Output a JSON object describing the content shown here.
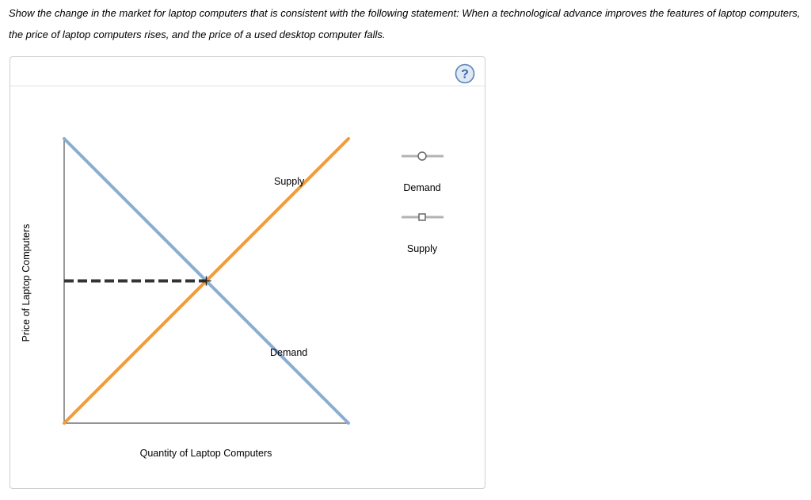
{
  "question": {
    "text": "Show the change in the market for laptop computers that is consistent with the following statement: When a technological advance improves the features of laptop computers, the price of laptop computers rises, and the price of a used desktop computer falls."
  },
  "help": {
    "glyph": "?",
    "icon": "help-circle-icon"
  },
  "graph": {
    "x_axis_label": "Quantity of Laptop Computers",
    "y_axis_label": "Price of Laptop Computers",
    "demand_curve_label": "Demand",
    "supply_curve_label": "Supply",
    "colors": {
      "demand": "#8aaed2",
      "supply": "#f29b38",
      "axis": "#555555",
      "guide": "#333333"
    }
  },
  "tools": [
    {
      "label": "Demand",
      "marker": "circle",
      "icon": "demand-line-tool-icon"
    },
    {
      "label": "Supply",
      "marker": "square",
      "icon": "supply-line-tool-icon"
    }
  ],
  "chart_data": {
    "type": "line",
    "title": "",
    "xlabel": "Quantity of Laptop Computers",
    "ylabel": "Price of Laptop Computers",
    "grid": false,
    "series": [
      {
        "name": "Demand",
        "points": [
          [
            0,
            1
          ],
          [
            1,
            0
          ]
        ],
        "color": "#8aaed2"
      },
      {
        "name": "Supply",
        "points": [
          [
            0,
            0
          ],
          [
            1,
            1
          ]
        ],
        "color": "#f29b38"
      }
    ],
    "equilibrium": {
      "x": 0.5,
      "y": 0.5,
      "price_guide": "dashed"
    }
  }
}
